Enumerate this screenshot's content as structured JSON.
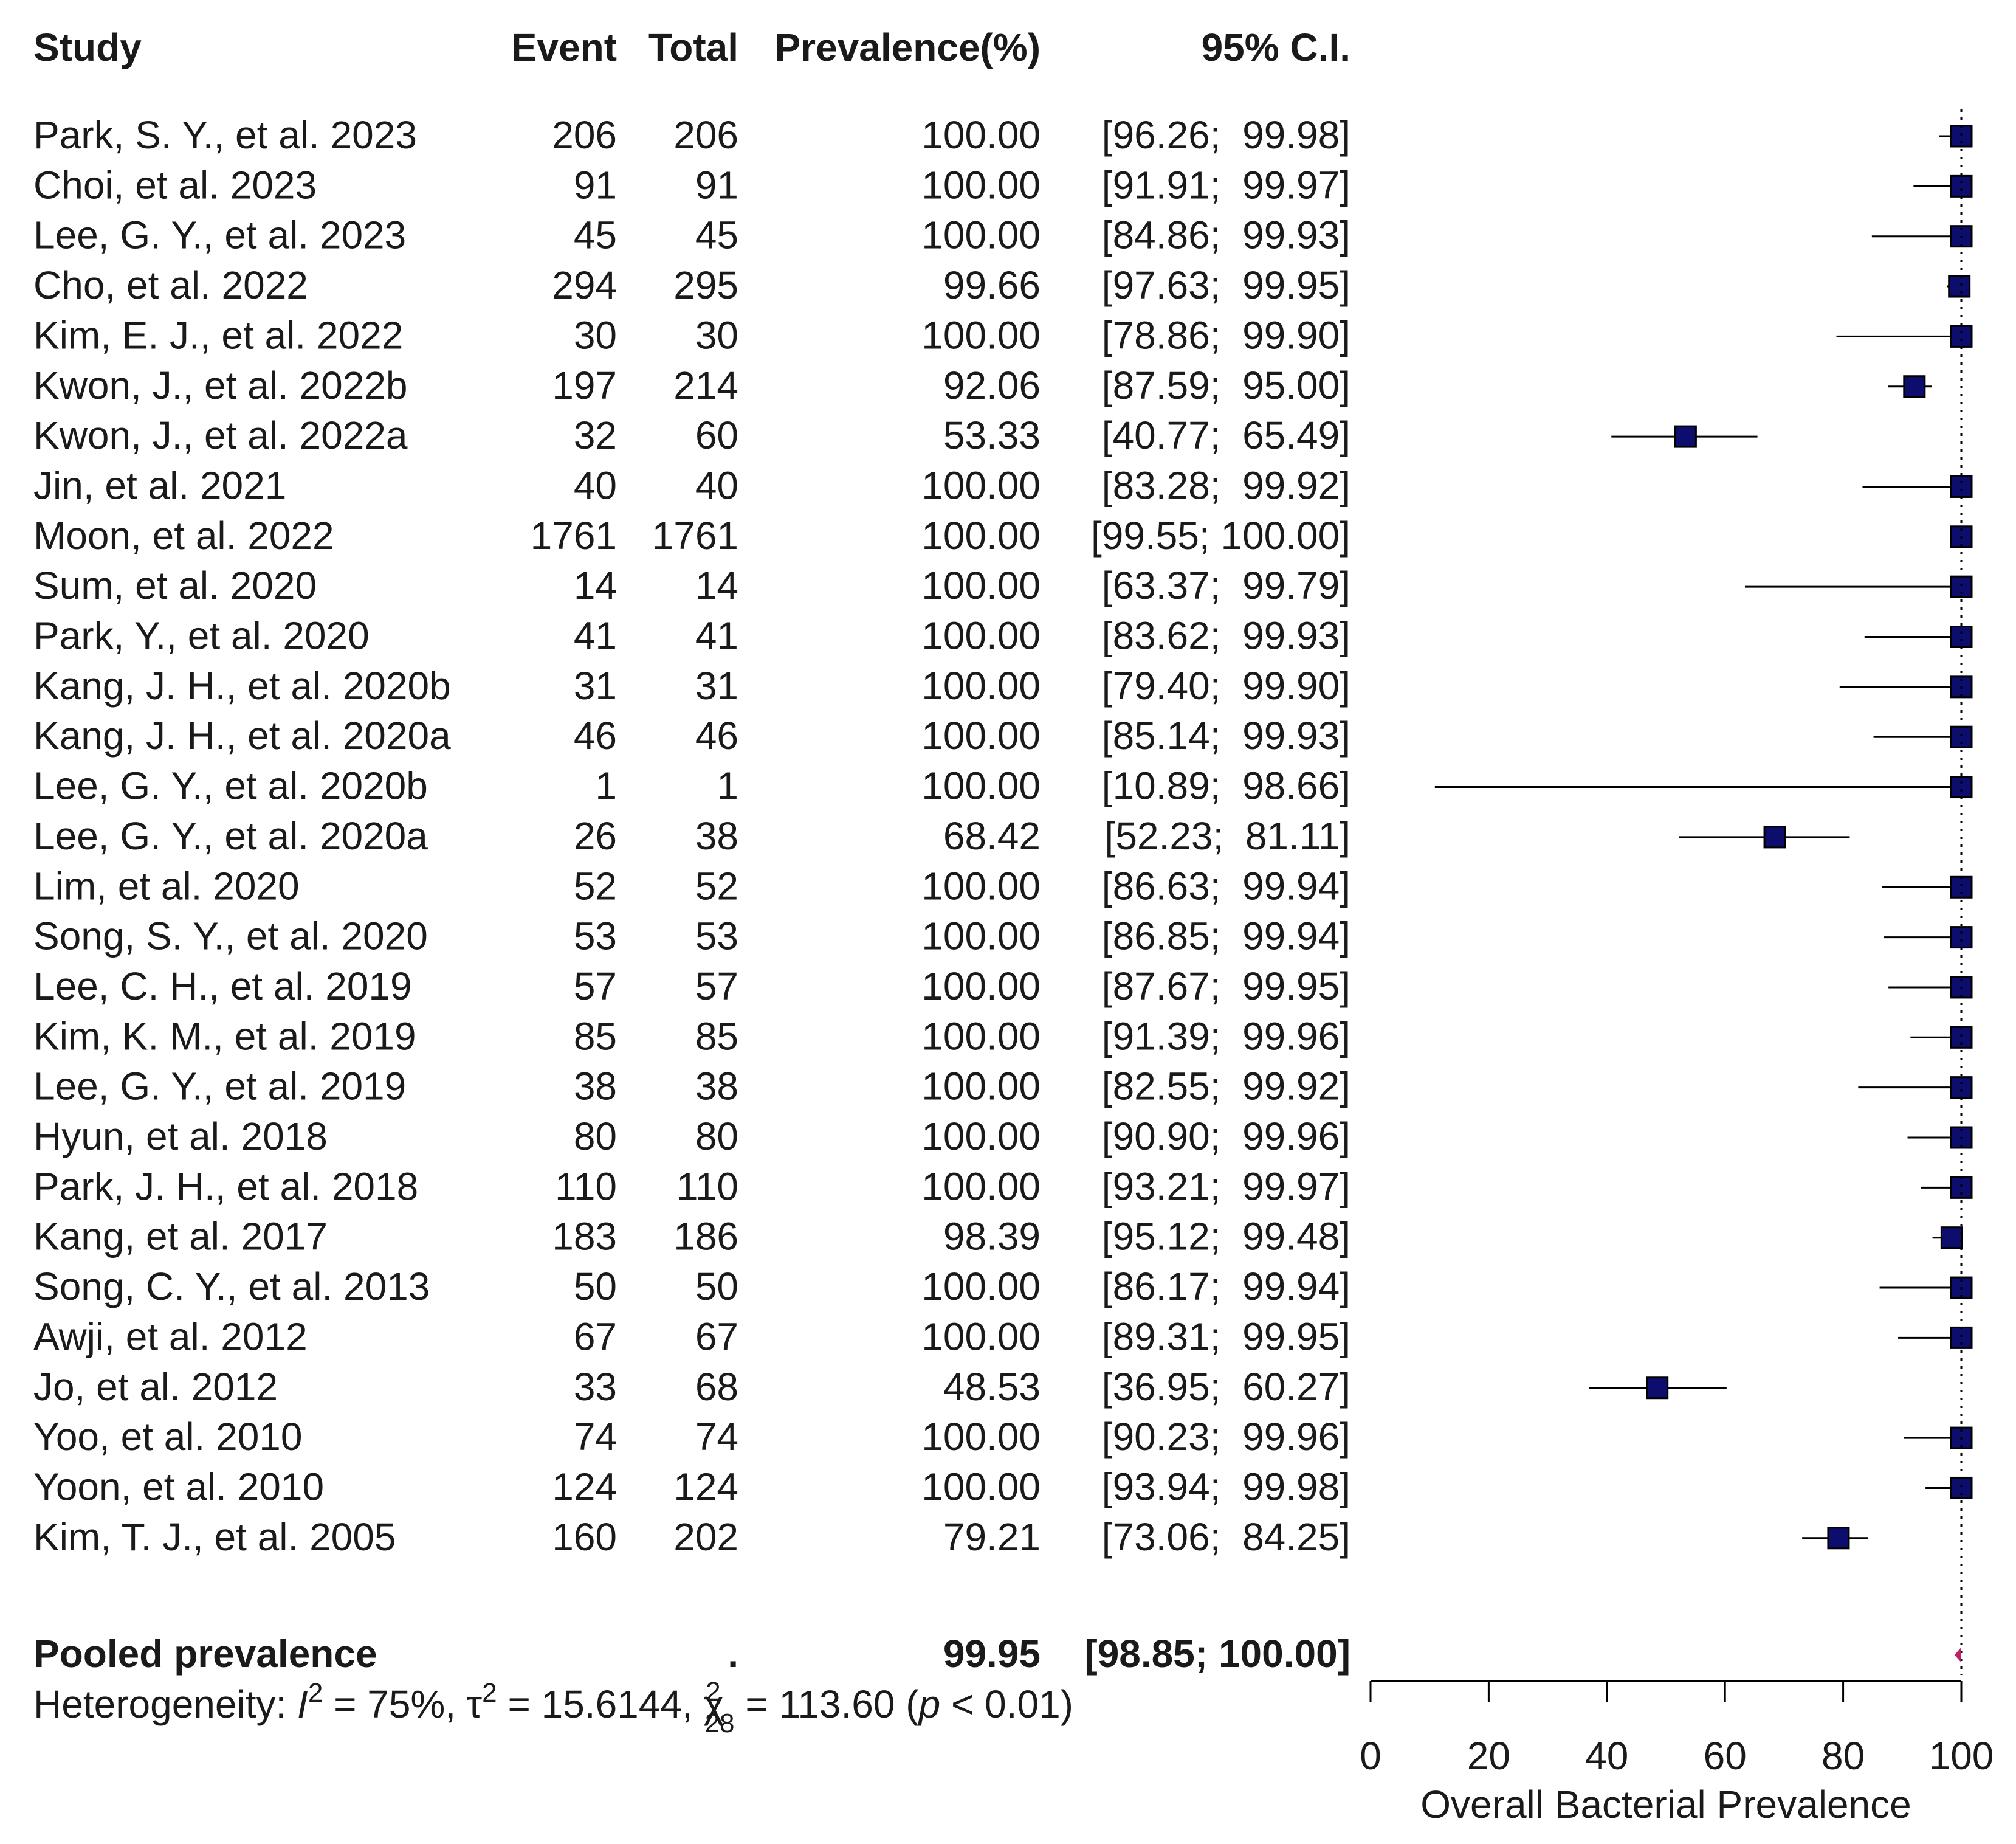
{
  "chart_data": {
    "type": "forest",
    "headers": {
      "study": "Study",
      "event": "Event",
      "total": "Total",
      "prevalence": "Prevalence(%)",
      "ci": "95% C.I."
    },
    "studies": [
      {
        "study": "Park, S. Y., et al. 2023",
        "event": "206",
        "total": "206",
        "prevalence": "100.00",
        "ci": "[96.26;  99.98]",
        "est": 100.0,
        "lower": 96.26,
        "upper": 99.98
      },
      {
        "study": "Choi, et al. 2023",
        "event": "91",
        "total": "91",
        "prevalence": "100.00",
        "ci": "[91.91;  99.97]",
        "est": 100.0,
        "lower": 91.91,
        "upper": 99.97
      },
      {
        "study": "Lee, G. Y., et al. 2023",
        "event": "45",
        "total": "45",
        "prevalence": "100.00",
        "ci": "[84.86;  99.93]",
        "est": 100.0,
        "lower": 84.86,
        "upper": 99.93
      },
      {
        "study": "Cho, et al. 2022",
        "event": "294",
        "total": "295",
        "prevalence": "99.66",
        "ci": "[97.63;  99.95]",
        "est": 99.66,
        "lower": 97.63,
        "upper": 99.95
      },
      {
        "study": "Kim, E. J., et al. 2022",
        "event": "30",
        "total": "30",
        "prevalence": "100.00",
        "ci": "[78.86;  99.90]",
        "est": 100.0,
        "lower": 78.86,
        "upper": 99.9
      },
      {
        "study": "Kwon, J., et al. 2022b",
        "event": "197",
        "total": "214",
        "prevalence": "92.06",
        "ci": "[87.59;  95.00]",
        "est": 92.06,
        "lower": 87.59,
        "upper": 95.0
      },
      {
        "study": "Kwon, J., et al. 2022a",
        "event": "32",
        "total": "60",
        "prevalence": "53.33",
        "ci": "[40.77;  65.49]",
        "est": 53.33,
        "lower": 40.77,
        "upper": 65.49
      },
      {
        "study": "Jin, et al. 2021",
        "event": "40",
        "total": "40",
        "prevalence": "100.00",
        "ci": "[83.28;  99.92]",
        "est": 100.0,
        "lower": 83.28,
        "upper": 99.92
      },
      {
        "study": "Moon, et al. 2022",
        "event": "1761",
        "total": "1761",
        "prevalence": "100.00",
        "ci": "[99.55; 100.00]",
        "est": 100.0,
        "lower": 99.55,
        "upper": 100.0
      },
      {
        "study": "Sum, et al. 2020",
        "event": "14",
        "total": "14",
        "prevalence": "100.00",
        "ci": "[63.37;  99.79]",
        "est": 100.0,
        "lower": 63.37,
        "upper": 99.79
      },
      {
        "study": "Park, Y., et al. 2020",
        "event": "41",
        "total": "41",
        "prevalence": "100.00",
        "ci": "[83.62;  99.93]",
        "est": 100.0,
        "lower": 83.62,
        "upper": 99.93
      },
      {
        "study": "Kang, J. H., et al. 2020b",
        "event": "31",
        "total": "31",
        "prevalence": "100.00",
        "ci": "[79.40;  99.90]",
        "est": 100.0,
        "lower": 79.4,
        "upper": 99.9
      },
      {
        "study": "Kang, J. H., et al. 2020a",
        "event": "46",
        "total": "46",
        "prevalence": "100.00",
        "ci": "[85.14;  99.93]",
        "est": 100.0,
        "lower": 85.14,
        "upper": 99.93
      },
      {
        "study": "Lee, G. Y., et al. 2020b",
        "event": "1",
        "total": "1",
        "prevalence": "100.00",
        "ci": "[10.89;  98.66]",
        "est": 100.0,
        "lower": 10.89,
        "upper": 98.66
      },
      {
        "study": "Lee, G. Y., et al. 2020a",
        "event": "26",
        "total": "38",
        "prevalence": "68.42",
        "ci": "[52.23;  81.11]",
        "est": 68.42,
        "lower": 52.23,
        "upper": 81.11
      },
      {
        "study": "Lim, et al. 2020",
        "event": "52",
        "total": "52",
        "prevalence": "100.00",
        "ci": "[86.63;  99.94]",
        "est": 100.0,
        "lower": 86.63,
        "upper": 99.94
      },
      {
        "study": "Song, S. Y., et al. 2020",
        "event": "53",
        "total": "53",
        "prevalence": "100.00",
        "ci": "[86.85;  99.94]",
        "est": 100.0,
        "lower": 86.85,
        "upper": 99.94
      },
      {
        "study": "Lee, C. H., et al. 2019",
        "event": "57",
        "total": "57",
        "prevalence": "100.00",
        "ci": "[87.67;  99.95]",
        "est": 100.0,
        "lower": 87.67,
        "upper": 99.95
      },
      {
        "study": "Kim, K. M., et al. 2019",
        "event": "85",
        "total": "85",
        "prevalence": "100.00",
        "ci": "[91.39;  99.96]",
        "est": 100.0,
        "lower": 91.39,
        "upper": 99.96
      },
      {
        "study": "Lee, G. Y., et al. 2019",
        "event": "38",
        "total": "38",
        "prevalence": "100.00",
        "ci": "[82.55;  99.92]",
        "est": 100.0,
        "lower": 82.55,
        "upper": 99.92
      },
      {
        "study": "Hyun, et al. 2018",
        "event": "80",
        "total": "80",
        "prevalence": "100.00",
        "ci": "[90.90;  99.96]",
        "est": 100.0,
        "lower": 90.9,
        "upper": 99.96
      },
      {
        "study": "Park, J. H., et al. 2018",
        "event": "110",
        "total": "110",
        "prevalence": "100.00",
        "ci": "[93.21;  99.97]",
        "est": 100.0,
        "lower": 93.21,
        "upper": 99.97
      },
      {
        "study": "Kang, et al. 2017",
        "event": "183",
        "total": "186",
        "prevalence": "98.39",
        "ci": "[95.12;  99.48]",
        "est": 98.39,
        "lower": 95.12,
        "upper": 99.48
      },
      {
        "study": "Song, C. Y., et al. 2013",
        "event": "50",
        "total": "50",
        "prevalence": "100.00",
        "ci": "[86.17;  99.94]",
        "est": 100.0,
        "lower": 86.17,
        "upper": 99.94
      },
      {
        "study": "Awji, et al. 2012",
        "event": "67",
        "total": "67",
        "prevalence": "100.00",
        "ci": "[89.31;  99.95]",
        "est": 100.0,
        "lower": 89.31,
        "upper": 99.95
      },
      {
        "study": "Jo, et al. 2012",
        "event": "33",
        "total": "68",
        "prevalence": "48.53",
        "ci": "[36.95;  60.27]",
        "est": 48.53,
        "lower": 36.95,
        "upper": 60.27
      },
      {
        "study": "Yoo, et al. 2010",
        "event": "74",
        "total": "74",
        "prevalence": "100.00",
        "ci": "[90.23;  99.96]",
        "est": 100.0,
        "lower": 90.23,
        "upper": 99.96
      },
      {
        "study": "Yoon, et al. 2010",
        "event": "124",
        "total": "124",
        "prevalence": "100.00",
        "ci": "[93.94;  99.98]",
        "est": 100.0,
        "lower": 93.94,
        "upper": 99.98
      },
      {
        "study": "Kim, T. J., et al. 2005",
        "event": "160",
        "total": "202",
        "prevalence": "79.21",
        "ci": "[73.06;  84.25]",
        "est": 79.21,
        "lower": 73.06,
        "upper": 84.25
      }
    ],
    "pooled": {
      "label": "Pooled prevalence",
      "total": ".",
      "prevalence": "99.95",
      "ci": "[98.85; 100.00]",
      "est": 99.95,
      "lower": 98.85,
      "upper": 100.0
    },
    "heterogeneity": {
      "prefix": "Heterogeneity: ",
      "i2_symbol": "I",
      "sup": "2",
      "i2_value": " = 75%, ",
      "tau_symbol": "τ",
      "tau_value": " = 15.6144, ",
      "chi_symbol": "χ",
      "chi_df": "28",
      "chi_value": " = 113.60 (",
      "p_symbol": "p",
      "p_value": " < 0.01)"
    },
    "xaxis": {
      "label": "Overall Bacterial Prevalence",
      "ticks": [
        0,
        20,
        40,
        60,
        80,
        100
      ],
      "range": [
        0,
        100
      ]
    },
    "reference_line": 100,
    "colors": {
      "marker": "#0d0d6e",
      "pooled": "#c0206a",
      "line": "#000000",
      "text": "#1a1a1a"
    }
  }
}
